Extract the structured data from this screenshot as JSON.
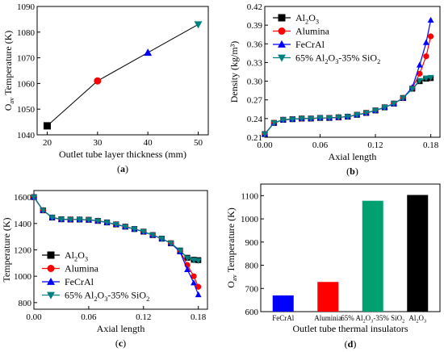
{
  "chart_data": [
    {
      "id": "a",
      "type": "line",
      "panel_label": "(a)",
      "panel_letter": "a",
      "xlabel": "Outlet tube layer thickness (mm)",
      "ylabel_main": "O",
      "ylabel_sub": "av",
      "ylabel_rest": " Temperature (K)",
      "xlim": [
        18,
        52
      ],
      "ylim": [
        1040,
        1090
      ],
      "xticks": [
        20,
        30,
        40,
        50
      ],
      "yticks": [
        1040,
        1050,
        1060,
        1070,
        1080,
        1090
      ],
      "x": [
        20,
        30,
        40,
        50
      ],
      "y": [
        1043.5,
        1061,
        1072,
        1083
      ],
      "markers": [
        {
          "shape": "square",
          "color": "#000000"
        },
        {
          "shape": "circle",
          "color": "#ff0000"
        },
        {
          "shape": "triangle-up",
          "color": "#0000ff"
        },
        {
          "shape": "triangle-down",
          "color": "#008080"
        }
      ],
      "grid": false
    },
    {
      "id": "b",
      "type": "line",
      "panel_label": "(b)",
      "panel_letter": "b",
      "xlabel": "Axial length",
      "ylabel": "Density (kg/m³)",
      "xlim": [
        0,
        0.19
      ],
      "ylim": [
        0.21,
        0.42
      ],
      "xticks": [
        0.0,
        0.06,
        0.12,
        0.18
      ],
      "xtick_labels": [
        "0.00",
        "0.06",
        "0.12",
        "0.18"
      ],
      "yticks": [
        0.21,
        0.24,
        0.27,
        0.3,
        0.33,
        0.36,
        0.39,
        0.42
      ],
      "ytick_labels": [
        "0.21",
        "0.24",
        "0.27",
        "0.30",
        "0.33",
        "0.36",
        "0.39",
        "0.42"
      ],
      "legend_position": "top-left",
      "series": [
        {
          "name": "Al2O3",
          "label_parts": [
            [
              "Al",
              ""
            ],
            [
              "2",
              "sub"
            ],
            [
              "O",
              ""
            ],
            [
              "3",
              "sub"
            ]
          ],
          "color": "#000000",
          "marker": "square",
          "x": [
            0.0,
            0.01,
            0.02,
            0.03,
            0.04,
            0.05,
            0.06,
            0.07,
            0.08,
            0.09,
            0.1,
            0.11,
            0.12,
            0.13,
            0.14,
            0.15,
            0.16,
            0.168,
            0.175,
            0.18
          ],
          "y": [
            0.215,
            0.233,
            0.238,
            0.239,
            0.24,
            0.24,
            0.241,
            0.241,
            0.242,
            0.243,
            0.246,
            0.249,
            0.253,
            0.258,
            0.264,
            0.273,
            0.288,
            0.3,
            0.304,
            0.305
          ]
        },
        {
          "name": "Alumina",
          "label_parts": [
            [
              "Alumina",
              ""
            ]
          ],
          "color": "#ff0000",
          "marker": "circle",
          "x": [
            0.0,
            0.01,
            0.02,
            0.03,
            0.04,
            0.05,
            0.06,
            0.07,
            0.08,
            0.09,
            0.1,
            0.11,
            0.12,
            0.13,
            0.14,
            0.15,
            0.16,
            0.168,
            0.175,
            0.18
          ],
          "y": [
            0.215,
            0.233,
            0.238,
            0.239,
            0.24,
            0.24,
            0.241,
            0.241,
            0.242,
            0.243,
            0.246,
            0.249,
            0.253,
            0.258,
            0.264,
            0.273,
            0.289,
            0.312,
            0.34,
            0.372
          ]
        },
        {
          "name": "FeCrAl",
          "label_parts": [
            [
              "FeCrAl",
              ""
            ]
          ],
          "color": "#0000ff",
          "marker": "triangle-up",
          "x": [
            0.0,
            0.01,
            0.02,
            0.03,
            0.04,
            0.05,
            0.06,
            0.07,
            0.08,
            0.09,
            0.1,
            0.11,
            0.12,
            0.13,
            0.14,
            0.15,
            0.16,
            0.168,
            0.175,
            0.18
          ],
          "y": [
            0.215,
            0.233,
            0.238,
            0.239,
            0.24,
            0.24,
            0.241,
            0.241,
            0.242,
            0.243,
            0.246,
            0.249,
            0.253,
            0.258,
            0.264,
            0.273,
            0.29,
            0.326,
            0.362,
            0.398
          ]
        },
        {
          "name": "65% Al2O3-35% SiO2",
          "label_parts": [
            [
              "65% Al",
              ""
            ],
            [
              "2",
              "sub"
            ],
            [
              "O",
              ""
            ],
            [
              "3",
              "sub"
            ],
            [
              "-35% SiO",
              ""
            ],
            [
              "2",
              "sub"
            ]
          ],
          "color": "#008080",
          "marker": "triangle-down",
          "x": [
            0.0,
            0.01,
            0.02,
            0.03,
            0.04,
            0.05,
            0.06,
            0.07,
            0.08,
            0.09,
            0.1,
            0.11,
            0.12,
            0.13,
            0.14,
            0.15,
            0.16,
            0.168,
            0.175,
            0.18
          ],
          "y": [
            0.215,
            0.233,
            0.238,
            0.239,
            0.24,
            0.24,
            0.241,
            0.241,
            0.242,
            0.243,
            0.246,
            0.249,
            0.253,
            0.258,
            0.264,
            0.273,
            0.288,
            0.301,
            0.305,
            0.306
          ]
        }
      ],
      "grid": false
    },
    {
      "id": "c",
      "type": "line",
      "panel_label": "(c)",
      "panel_letter": "c",
      "xlabel": "Axial length",
      "ylabel": "Temperature (K)",
      "xlim": [
        0,
        0.19
      ],
      "ylim": [
        750,
        1650
      ],
      "xticks": [
        0.0,
        0.06,
        0.12,
        0.18
      ],
      "xtick_labels": [
        "0.00",
        "0.06",
        "0.12",
        "0.18"
      ],
      "yticks": [
        800,
        1000,
        1200,
        1400,
        1600
      ],
      "legend_position": "bottom-left",
      "series": [
        {
          "name": "Al2O3",
          "label_parts": [
            [
              "Al",
              ""
            ],
            [
              "2",
              "sub"
            ],
            [
              "O",
              ""
            ],
            [
              "3",
              "sub"
            ]
          ],
          "color": "#000000",
          "marker": "square",
          "x": [
            0.0,
            0.01,
            0.02,
            0.03,
            0.04,
            0.05,
            0.06,
            0.07,
            0.08,
            0.09,
            0.1,
            0.11,
            0.12,
            0.13,
            0.14,
            0.15,
            0.16,
            0.168,
            0.175,
            0.18
          ],
          "y": [
            1600,
            1500,
            1445,
            1432,
            1430,
            1430,
            1428,
            1420,
            1408,
            1393,
            1376,
            1358,
            1338,
            1312,
            1285,
            1250,
            1195,
            1140,
            1125,
            1122
          ]
        },
        {
          "name": "Alumina",
          "label_parts": [
            [
              "Alumina",
              ""
            ]
          ],
          "color": "#ff0000",
          "marker": "circle",
          "x": [
            0.0,
            0.01,
            0.02,
            0.03,
            0.04,
            0.05,
            0.06,
            0.07,
            0.08,
            0.09,
            0.1,
            0.11,
            0.12,
            0.13,
            0.14,
            0.15,
            0.16,
            0.168,
            0.175,
            0.18
          ],
          "y": [
            1600,
            1500,
            1445,
            1432,
            1430,
            1430,
            1428,
            1420,
            1408,
            1393,
            1376,
            1358,
            1338,
            1312,
            1285,
            1250,
            1190,
            1085,
            1000,
            920
          ]
        },
        {
          "name": "FeCrAl",
          "label_parts": [
            [
              "FeCrAl",
              ""
            ]
          ],
          "color": "#0000ff",
          "marker": "triangle-up",
          "x": [
            0.0,
            0.01,
            0.02,
            0.03,
            0.04,
            0.05,
            0.06,
            0.07,
            0.08,
            0.09,
            0.1,
            0.11,
            0.12,
            0.13,
            0.14,
            0.15,
            0.16,
            0.168,
            0.175,
            0.18
          ],
          "y": [
            1600,
            1500,
            1445,
            1432,
            1430,
            1430,
            1428,
            1420,
            1408,
            1393,
            1376,
            1358,
            1338,
            1312,
            1285,
            1250,
            1185,
            1050,
            950,
            860
          ]
        },
        {
          "name": "65% Al2O3-35% SiO2",
          "label_parts": [
            [
              "65% Al",
              ""
            ],
            [
              "2",
              "sub"
            ],
            [
              "O",
              ""
            ],
            [
              "3",
              "sub"
            ],
            [
              "-35% SiO",
              ""
            ],
            [
              "2",
              "sub"
            ]
          ],
          "color": "#008080",
          "marker": "triangle-down",
          "x": [
            0.0,
            0.01,
            0.02,
            0.03,
            0.04,
            0.05,
            0.06,
            0.07,
            0.08,
            0.09,
            0.1,
            0.11,
            0.12,
            0.13,
            0.14,
            0.15,
            0.16,
            0.168,
            0.175,
            0.18
          ],
          "y": [
            1600,
            1500,
            1445,
            1432,
            1430,
            1430,
            1428,
            1420,
            1408,
            1393,
            1376,
            1358,
            1338,
            1312,
            1285,
            1250,
            1195,
            1138,
            1122,
            1118
          ]
        }
      ],
      "grid": false
    },
    {
      "id": "d",
      "type": "bar",
      "panel_label": "(d)",
      "panel_letter": "d",
      "xlabel": "Outlet tube thermal insulators",
      "ylabel_main": "O",
      "ylabel_sub": "av",
      "ylabel_rest": " Temperature (K)",
      "ylim": [
        600,
        1150
      ],
      "yticks": [
        600,
        700,
        800,
        900,
        1000,
        1100
      ],
      "categories": [
        "FeCrAl",
        "Aluminia",
        "65% Al2O3-35% SiO2",
        "Al2O3"
      ],
      "category_label_parts": [
        [
          [
            "FeCrAl",
            ""
          ]
        ],
        [
          [
            "Aluminia",
            ""
          ]
        ],
        [
          [
            "65% Al",
            ""
          ],
          [
            "2",
            "sub"
          ],
          [
            "O",
            ""
          ],
          [
            "3",
            "sub"
          ],
          [
            "-35% SiO",
            ""
          ],
          [
            "2",
            "sub"
          ]
        ],
        [
          [
            "Al",
            ""
          ],
          [
            "2",
            "sub"
          ],
          [
            "O",
            ""
          ],
          [
            "3",
            "sub"
          ]
        ]
      ],
      "values": [
        670,
        728,
        1078,
        1103
      ],
      "colors": [
        "#0000ff",
        "#ff0000",
        "#00a070",
        "#000000"
      ],
      "grid": false
    }
  ]
}
